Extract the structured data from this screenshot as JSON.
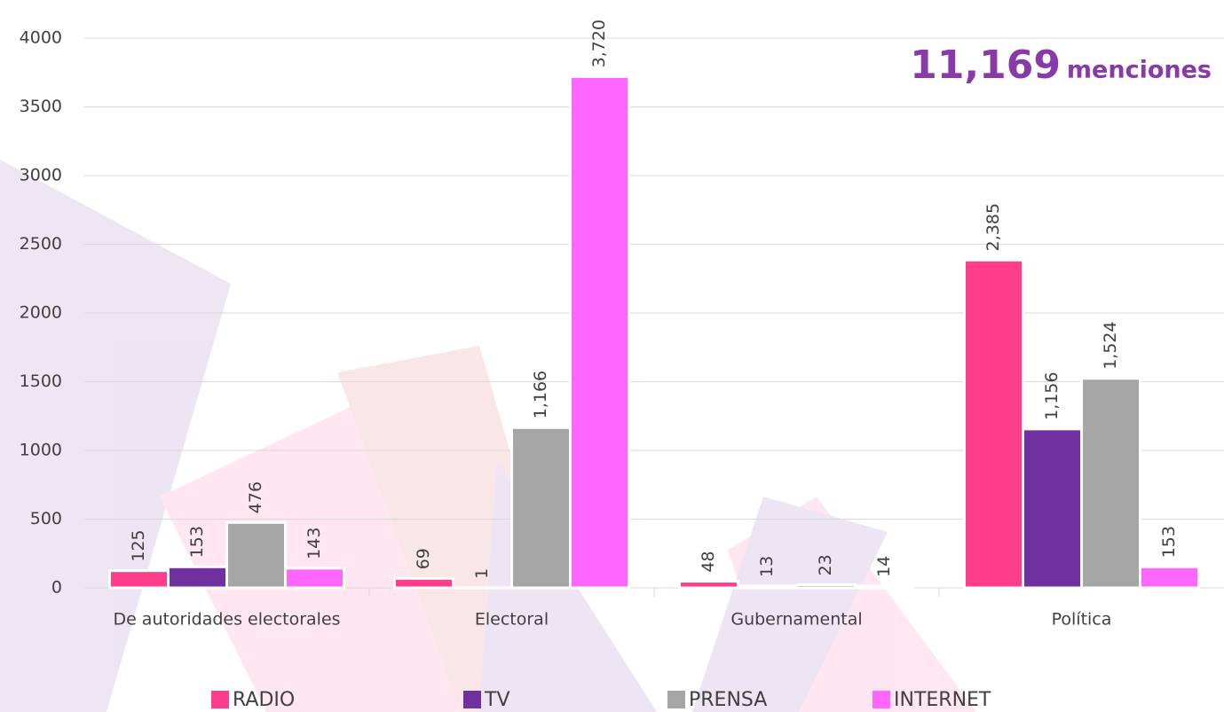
{
  "chart_data": {
    "type": "bar",
    "annotations": [
      "11,169",
      "menciones"
    ],
    "categories": [
      "De autoridades electorales",
      "Electoral",
      "Gubernamental",
      "Política"
    ],
    "series": [
      {
        "name": "RADIO",
        "color": "#ff3d8b",
        "values": [
          125,
          69,
          48,
          2385
        ],
        "value_labels": [
          "125",
          "69",
          "48",
          "2,385"
        ]
      },
      {
        "name": "TV",
        "color": "#7030a0",
        "values": [
          153,
          1,
          13,
          1156
        ],
        "value_labels": [
          "153",
          "1",
          "13",
          "1,156"
        ]
      },
      {
        "name": "PRENSA",
        "color": "#a6a6a6",
        "values": [
          476,
          1166,
          23,
          1524
        ],
        "value_labels": [
          "476",
          "1,166",
          "23",
          "1,524"
        ]
      },
      {
        "name": "INTERNET",
        "color": "#ff66ff",
        "values": [
          143,
          3720,
          14,
          153
        ],
        "value_labels": [
          "143",
          "3,720",
          "14",
          "153"
        ]
      }
    ],
    "ylim": [
      0,
      4000
    ],
    "yticks": [
      0,
      500,
      1000,
      1500,
      2000,
      2500,
      3000,
      3500,
      4000
    ],
    "grid": true,
    "legend": "bottom"
  }
}
